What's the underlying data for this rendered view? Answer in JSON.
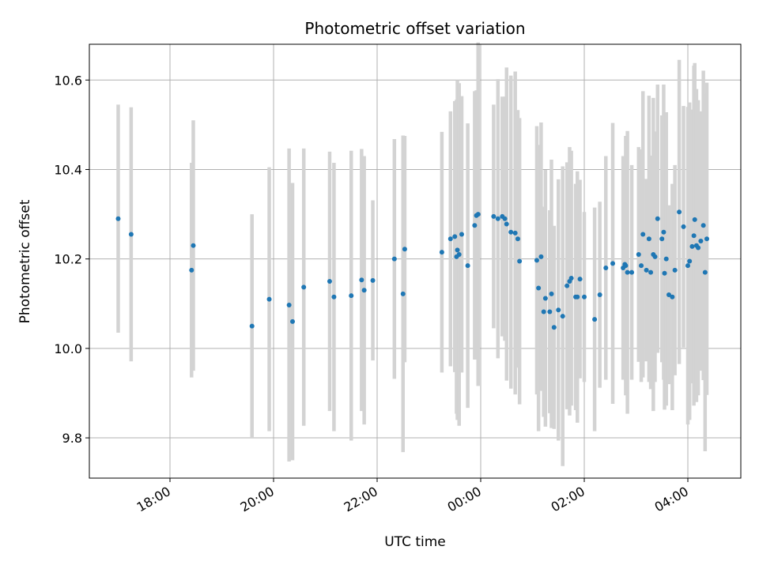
{
  "chart_data": {
    "type": "scatter",
    "title": "Photometric offset variation",
    "xlabel": "UTC time",
    "ylabel": "Photometric offset",
    "x_ticks": [
      "18:00",
      "20:00",
      "22:00",
      "00:00",
      "02:00",
      "04:00"
    ],
    "y_ticks": [
      "9.8",
      "10.0",
      "10.2",
      "10.4",
      "10.6"
    ],
    "ylim": [
      9.71,
      10.68
    ],
    "xlim_hours_utc": [
      "16:30",
      "05:00"
    ],
    "grid": true,
    "colors": {
      "point": "#1f77b4",
      "errorbar": "#d3d3d3",
      "grid": "#b0b0b0"
    },
    "series": [
      {
        "x": [
          "17:00",
          "17:15",
          "18:25",
          "18:27",
          "19:35",
          "19:55",
          "20:18",
          "20:22",
          "20:35",
          "21:05",
          "21:10",
          "21:30",
          "21:42",
          "21:45",
          "21:55",
          "22:20",
          "22:30",
          "22:32",
          "23:15",
          "23:25",
          "23:30",
          "23:32",
          "23:33",
          "23:35",
          "23:38",
          "23:45",
          "23:53",
          "23:55",
          "23:57",
          "00:15",
          "00:20",
          "00:25",
          "00:28",
          "00:30",
          "00:35",
          "00:40",
          "00:43",
          "00:45",
          "01:05",
          "01:07",
          "01:10",
          "01:13",
          "01:15",
          "01:20",
          "01:22",
          "01:25",
          "01:30",
          "01:35",
          "01:40",
          "01:43",
          "01:45",
          "01:50",
          "01:52",
          "01:55",
          "02:00",
          "02:12",
          "02:18",
          "02:25",
          "02:33",
          "02:45",
          "02:47",
          "02:48",
          "02:50",
          "02:55",
          "03:03",
          "03:06",
          "03:08",
          "03:12",
          "03:15",
          "03:17",
          "03:20",
          "03:22",
          "03:25",
          "03:30",
          "03:32",
          "03:33",
          "03:35",
          "03:38",
          "03:42",
          "03:45",
          "03:50",
          "03:55",
          "04:00",
          "04:02",
          "04:05",
          "04:07",
          "04:08",
          "04:10",
          "04:12",
          "04:15",
          "04:18",
          "04:20",
          "04:22"
        ],
        "y": [
          10.29,
          10.255,
          10.175,
          10.23,
          10.05,
          10.11,
          10.097,
          10.06,
          10.137,
          10.15,
          10.115,
          10.118,
          10.153,
          10.13,
          10.152,
          10.2,
          10.122,
          10.222,
          10.215,
          10.245,
          10.25,
          10.205,
          10.22,
          10.21,
          10.255,
          10.185,
          10.275,
          10.297,
          10.3,
          10.295,
          10.29,
          10.295,
          10.29,
          10.278,
          10.26,
          10.258,
          10.245,
          10.195,
          10.197,
          10.135,
          10.205,
          10.082,
          10.112,
          10.082,
          10.122,
          10.047,
          10.086,
          10.072,
          10.14,
          10.15,
          10.157,
          10.115,
          10.115,
          10.155,
          10.115,
          10.065,
          10.12,
          10.18,
          10.19,
          10.18,
          10.188,
          10.185,
          10.17,
          10.17,
          10.21,
          10.185,
          10.255,
          10.175,
          10.245,
          10.17,
          10.21,
          10.205,
          10.29,
          10.245,
          10.26,
          10.168,
          10.2,
          10.12,
          10.115,
          10.175,
          10.305,
          10.272,
          10.185,
          10.195,
          10.228,
          10.252,
          10.288,
          10.23,
          10.225,
          10.24,
          10.275,
          10.17,
          10.245
        ],
        "yerr": [
          0.255,
          0.284,
          0.24,
          0.28,
          0.25,
          0.295,
          0.35,
          0.31,
          0.31,
          0.29,
          0.3,
          0.324,
          0.293,
          0.3,
          0.179,
          0.268,
          0.354,
          0.253,
          0.269,
          0.285,
          0.303,
          0.351,
          0.38,
          0.383,
          0.309,
          0.318,
          0.3,
          0.28,
          0.384,
          0.25,
          0.312,
          0.268,
          0.273,
          0.35,
          0.35,
          0.361,
          0.288,
          0.32,
          0.3,
          0.32,
          0.3,
          0.235,
          0.287,
          0.227,
          0.3,
          0.227,
          0.292,
          0.335,
          0.276,
          0.3,
          0.285,
          0.253,
          0.281,
          0.222,
          0.19,
          0.25,
          0.208,
          0.25,
          0.314,
          0.25,
          0.17,
          0.29,
          0.316,
          0.24,
          0.24,
          0.26,
          0.32,
          0.204,
          0.32,
          0.261,
          0.35,
          0.28,
          0.3,
          0.276,
          0.33,
          0.305,
          0.328,
          0.2,
          0.253,
          0.235,
          0.34,
          0.27,
          0.355,
          0.355,
          0.306,
          0.38,
          0.35,
          0.35,
          0.33,
          0.29,
          0.346,
          0.4,
          0.349
        ]
      }
    ]
  }
}
